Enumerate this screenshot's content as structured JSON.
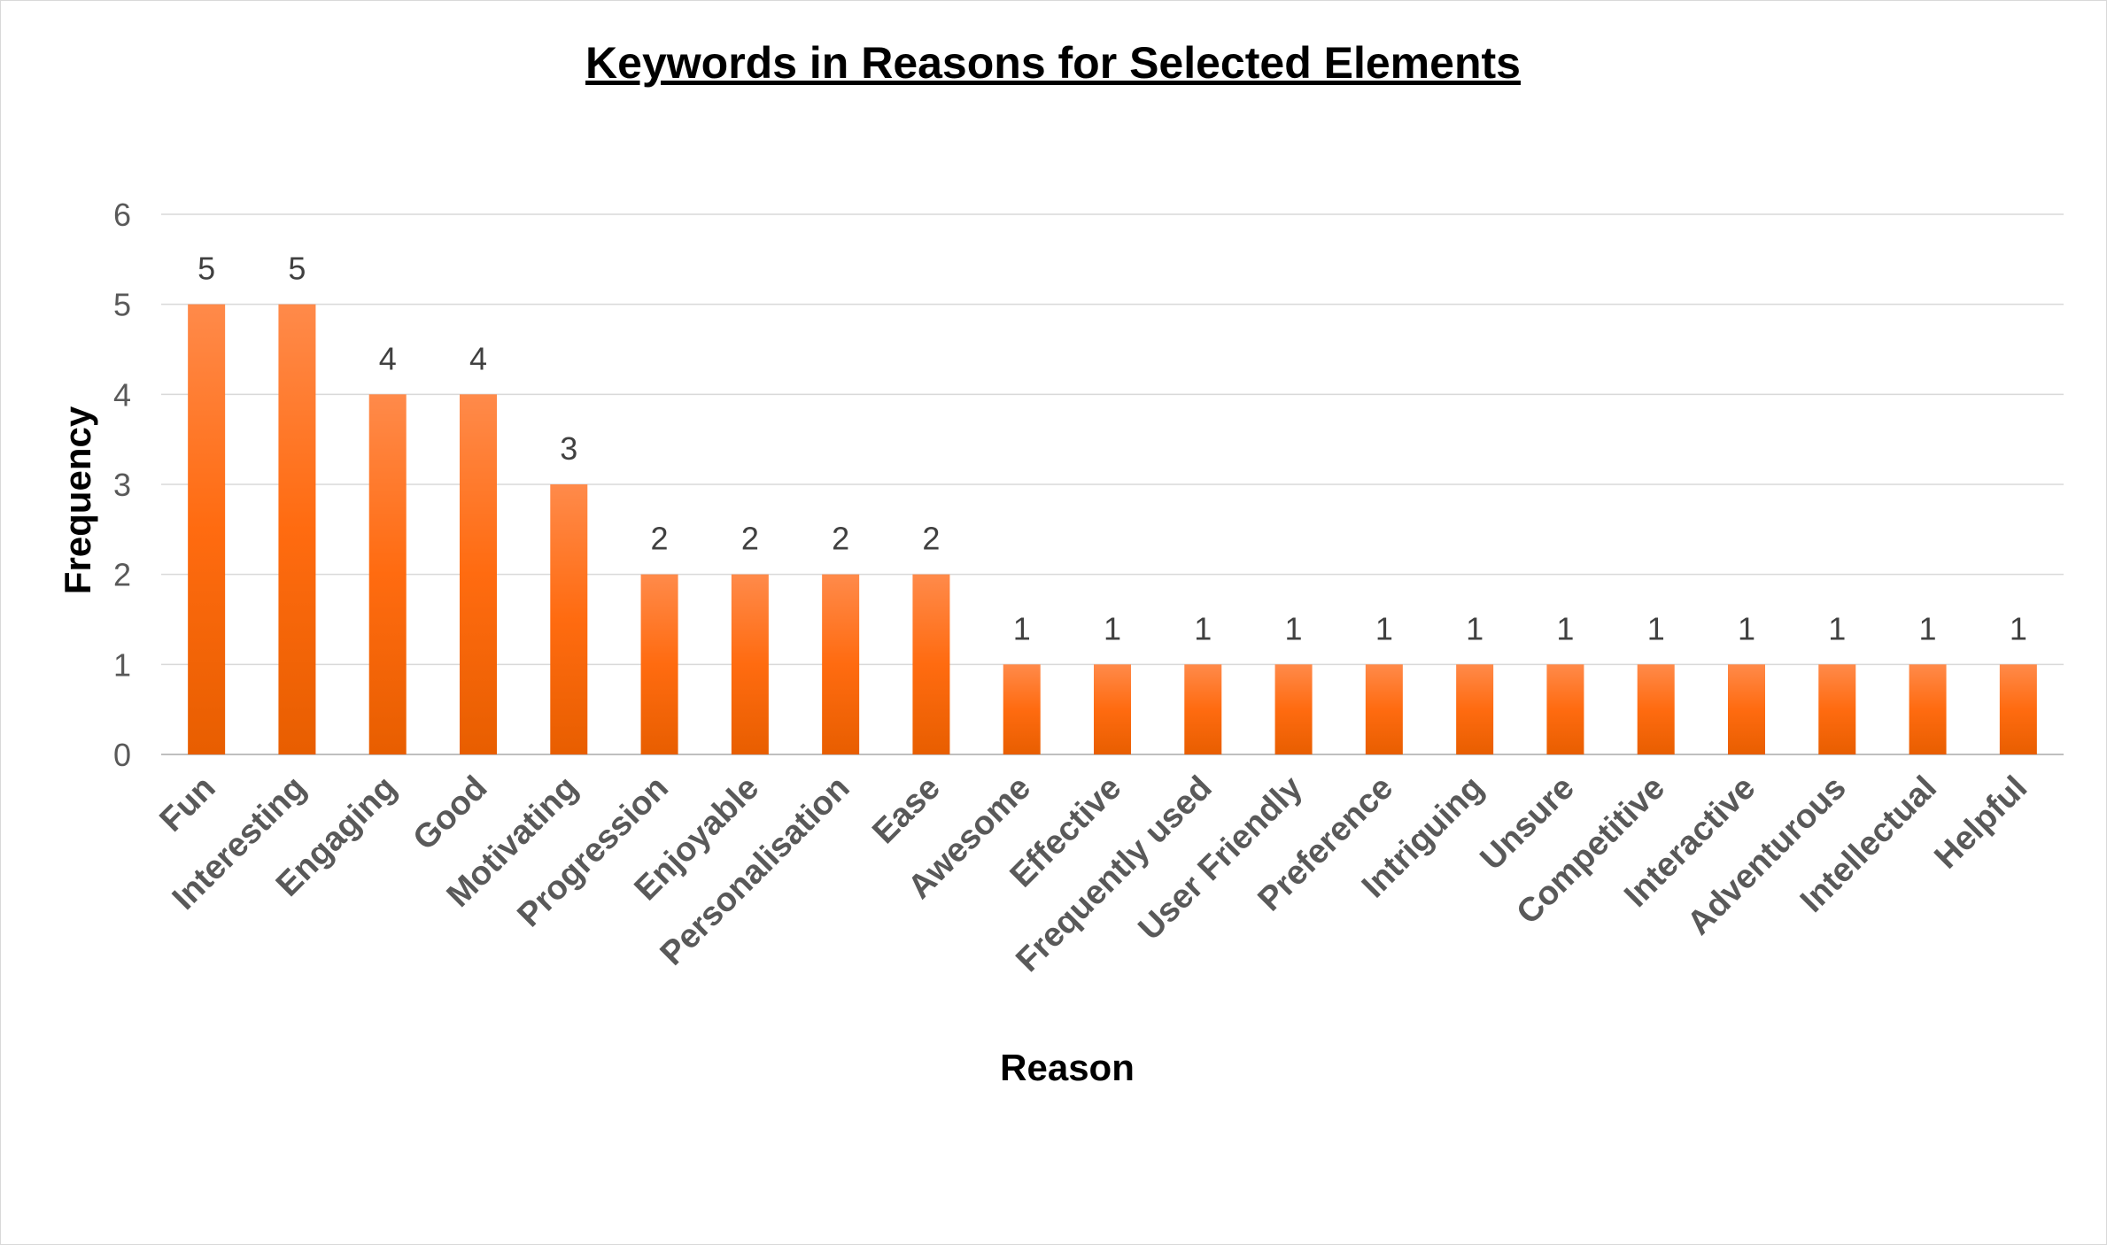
{
  "chart_data": {
    "type": "bar",
    "title": "Keywords in Reasons for Selected Elements",
    "xlabel": "Reason",
    "ylabel": "Frequency",
    "ylim": [
      0,
      6
    ],
    "yticks": [
      "0",
      "1",
      "2",
      "3",
      "4",
      "5",
      "6"
    ],
    "grid": true,
    "legend": "none",
    "colors": {
      "bar": "#ff6b10",
      "bar_light": "#ff8a4a",
      "grid": "#d9d9d9",
      "data_label": "#404040"
    },
    "categories": [
      "Fun",
      "Interesting",
      "Engaging",
      "Good",
      "Motivating",
      "Progression",
      "Enjoyable",
      "Personalisation",
      "Ease",
      "Awesome",
      "Effective",
      "Frequently used",
      "User Friendly",
      "Preference",
      "Intriguing",
      "Unsure",
      "Competitive",
      "Interactive",
      "Adventurous",
      "Intellectual",
      "Helpful"
    ],
    "values": [
      5,
      5,
      4,
      4,
      3,
      2,
      2,
      2,
      2,
      1,
      1,
      1,
      1,
      1,
      1,
      1,
      1,
      1,
      1,
      1,
      1
    ],
    "data_labels": [
      "5",
      "5",
      "4",
      "4",
      "3",
      "2",
      "2",
      "2",
      "2",
      "1",
      "1",
      "1",
      "1",
      "1",
      "1",
      "1",
      "1",
      "1",
      "1",
      "1",
      "1"
    ]
  }
}
